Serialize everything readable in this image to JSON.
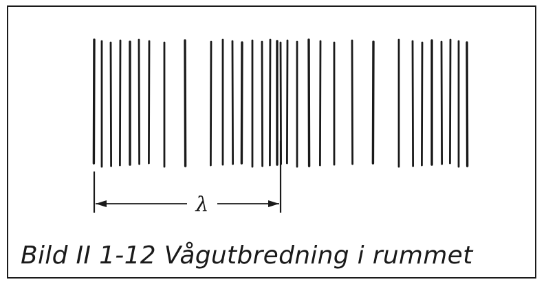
{
  "figure": {
    "caption": "Bild II 1-12  Vågutbredning i rummet",
    "wavelength_label": "λ"
  }
}
